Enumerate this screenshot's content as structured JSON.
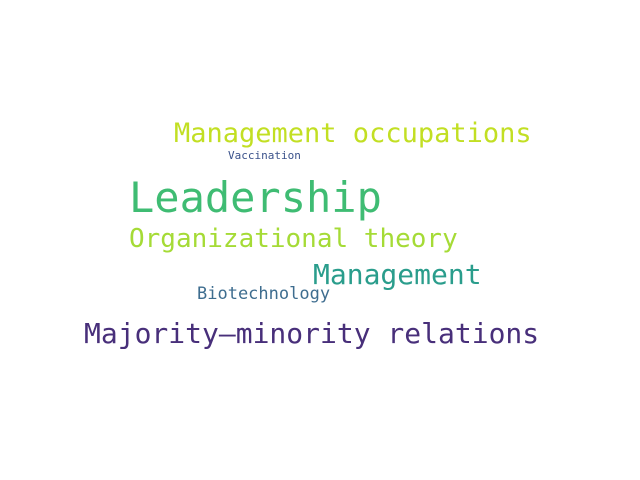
{
  "words": [
    {
      "text": "Management occupations",
      "color": "#c2df23"
    },
    {
      "text": "Vaccination",
      "color": "#3b528b"
    },
    {
      "text": "Leadership",
      "color": "#3fbc73"
    },
    {
      "text": "Organizational theory",
      "color": "#a5db36"
    },
    {
      "text": "Management",
      "color": "#2a9d8c"
    },
    {
      "text": "Biotechnology",
      "color": "#3e6d8f"
    },
    {
      "text": "Majority–minority relations",
      "color": "#482f7a"
    }
  ]
}
